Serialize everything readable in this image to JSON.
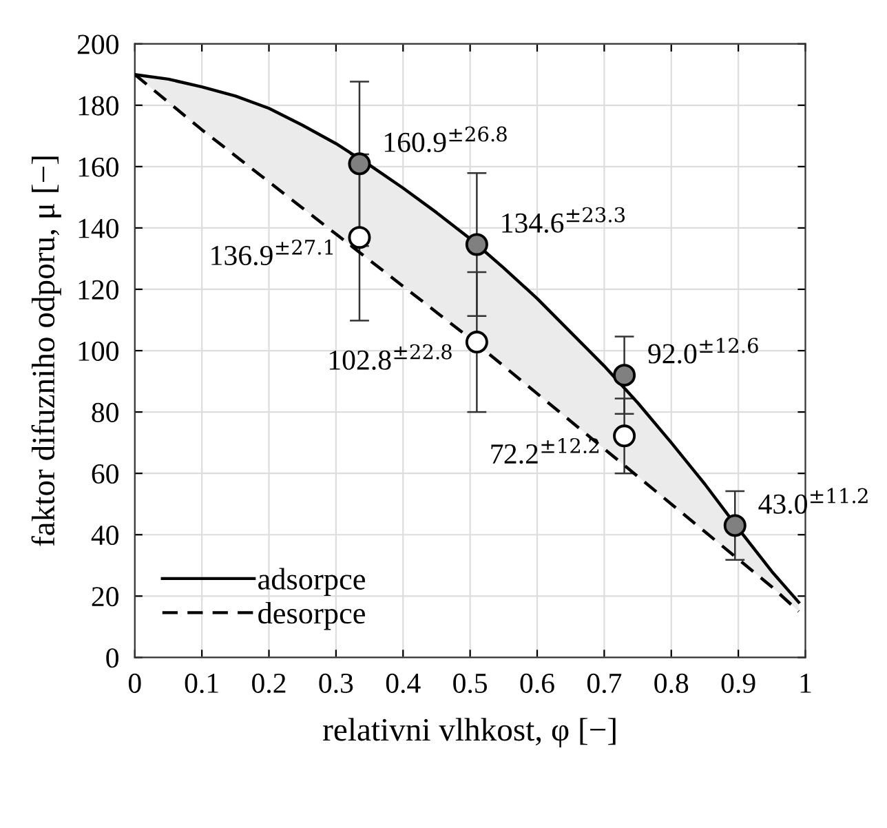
{
  "chart_data": {
    "type": "line",
    "xlabel": "relativni vlhkost, φ [−]",
    "ylabel": "faktor difuzniho odporu, μ [−]",
    "xlim": [
      0,
      1
    ],
    "ylim": [
      0,
      200
    ],
    "xticks": [
      0,
      0.1,
      0.2,
      0.3,
      0.4,
      0.5,
      0.6,
      0.7,
      0.8,
      0.9,
      1
    ],
    "yticks": [
      0,
      20,
      40,
      60,
      80,
      100,
      120,
      140,
      160,
      180,
      200
    ],
    "grid": true,
    "legend": "bottom left",
    "series": [
      {
        "name": "adsorpce",
        "line_style": "solid",
        "color": "#000000",
        "x": [
          0,
          0.05,
          0.1,
          0.15,
          0.2,
          0.25,
          0.3,
          0.35,
          0.4,
          0.45,
          0.5,
          0.55,
          0.6,
          0.65,
          0.7,
          0.75,
          0.8,
          0.85,
          0.9,
          0.95,
          0.99
        ],
        "values": [
          190,
          188.5,
          186,
          183,
          179,
          173.5,
          167.5,
          160.5,
          153,
          145,
          136.5,
          127,
          117,
          106,
          95,
          83,
          70,
          56.5,
          42,
          28,
          18
        ],
        "lower": [
          190,
          181,
          172,
          163.5,
          155,
          146.5,
          138,
          129.5,
          121,
          112.5,
          104,
          95,
          86,
          77,
          68,
          59,
          50,
          41,
          32,
          23,
          15
        ],
        "upper": [
          190,
          188.5,
          186,
          183,
          179,
          173.5,
          167.5,
          160.5,
          153,
          145,
          136.5,
          127,
          117,
          106,
          95,
          83,
          70,
          56.5,
          42,
          28,
          18
        ]
      },
      {
        "name": "desorpce",
        "line_style": "dashed",
        "color": "#000000",
        "x": [
          0,
          0.05,
          0.1,
          0.15,
          0.2,
          0.25,
          0.3,
          0.35,
          0.4,
          0.45,
          0.5,
          0.55,
          0.6,
          0.65,
          0.7,
          0.75,
          0.8,
          0.85,
          0.9,
          0.95,
          0.99
        ],
        "values": [
          190,
          181,
          172,
          163.5,
          155,
          146.5,
          138,
          129.5,
          121,
          112.5,
          104,
          95,
          86,
          77,
          68,
          59,
          50,
          41,
          32,
          23,
          15
        ]
      },
      {
        "type": "scatter",
        "marker": "circle",
        "color": "#808080",
        "x": [
          0.335,
          0.51,
          0.73,
          0.895
        ],
        "values": [
          160.9,
          134.6,
          92.0,
          43.0
        ],
        "errors": [
          26.8,
          23.3,
          12.6,
          11.2
        ],
        "value_labels": [
          "160.9$^{±26.8}$",
          "134.6$^{±23.3}$",
          "92.0$^{±12.6}$",
          "43.0$^{±11.2}$"
        ]
      },
      {
        "type": "scatter",
        "marker": "circle",
        "color": "#ffffff",
        "x": [
          0.335,
          0.51,
          0.73
        ],
        "values": [
          136.9,
          102.8,
          72.2
        ],
        "errors": [
          27.1,
          22.8,
          12.2
        ],
        "value_labels": [
          "136.9$^{±27.1}$",
          "102.8$^{±22.8}$",
          "72.2$^{±12.2}$"
        ]
      }
    ]
  }
}
